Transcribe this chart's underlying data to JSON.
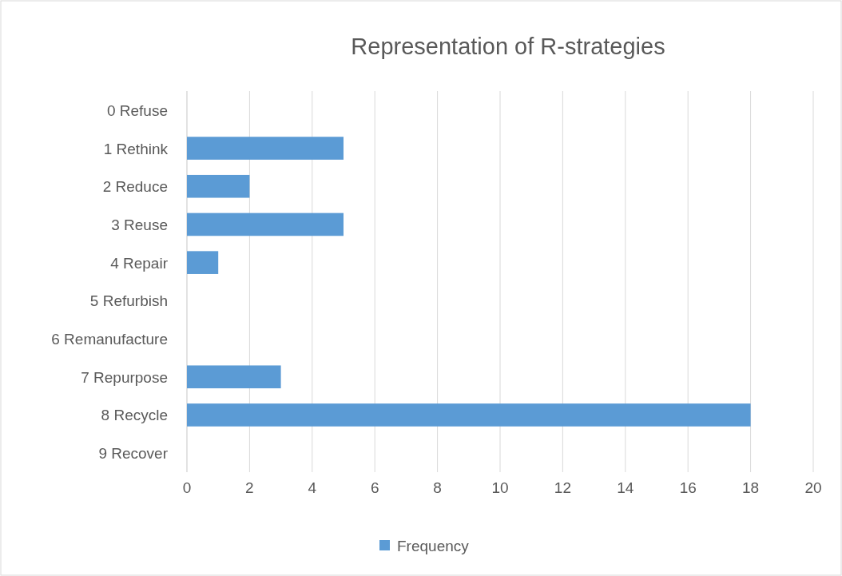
{
  "chart_data": {
    "type": "bar",
    "orientation": "horizontal",
    "title": "Representation of R-strategies",
    "categories": [
      "0 Refuse",
      "1 Rethink",
      "2 Reduce",
      "3 Reuse",
      "4 Repair",
      "5 Refurbish",
      "6 Remanufacture",
      "7 Repurpose",
      "8 Recycle",
      "9 Recover"
    ],
    "series": [
      {
        "name": "Frequency",
        "color": "#5b9bd5",
        "values": [
          0,
          5,
          2,
          5,
          1,
          0,
          0,
          3,
          18,
          0
        ]
      }
    ],
    "xlim": [
      0,
      20
    ],
    "xticks": [
      0,
      2,
      4,
      6,
      8,
      10,
      12,
      14,
      16,
      18,
      20
    ],
    "grid": "x",
    "legend": "bottom"
  }
}
